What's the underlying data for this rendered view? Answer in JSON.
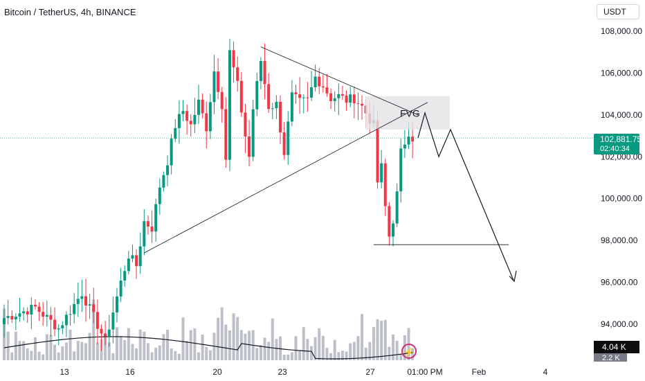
{
  "header": {
    "title": "Bitcoin / TetherUS, 4h, BINANCE",
    "currency": "USDT"
  },
  "price_tag": {
    "price": "102,881.75",
    "countdown": "02:40:34"
  },
  "volume_tag": {
    "primary": "4.04 K",
    "secondary": "2.2 K"
  },
  "annotation": {
    "fvg": "FVG"
  },
  "colors": {
    "up": "#089981",
    "down": "#f23645",
    "volume": "#b2b5be",
    "line": "#131722",
    "fvg_box": "#e3e3e6"
  },
  "icons": {
    "alert": "lightning-bolt-icon"
  },
  "chart_data": {
    "type": "candlestick",
    "title": "Bitcoin / TetherUS, 4h, BINANCE",
    "y_axis": {
      "ticks": [
        "108,000.00",
        "106,000.00",
        "104,000.00",
        "102,000.00",
        "100,000.00",
        "98,000.00",
        "96,000.00",
        "94,000.00"
      ],
      "ylim": [
        93200,
        108900
      ]
    },
    "x_axis": {
      "ticks": [
        "13",
        "16",
        "20",
        "23",
        "27",
        "01:00 PM",
        "Feb",
        "4"
      ]
    },
    "last_price": 102881.75,
    "volume_ma": "line",
    "pattern": "symmetrical triangle",
    "fvg_zone": [
      103300,
      104900
    ],
    "support_level": 97800
  }
}
